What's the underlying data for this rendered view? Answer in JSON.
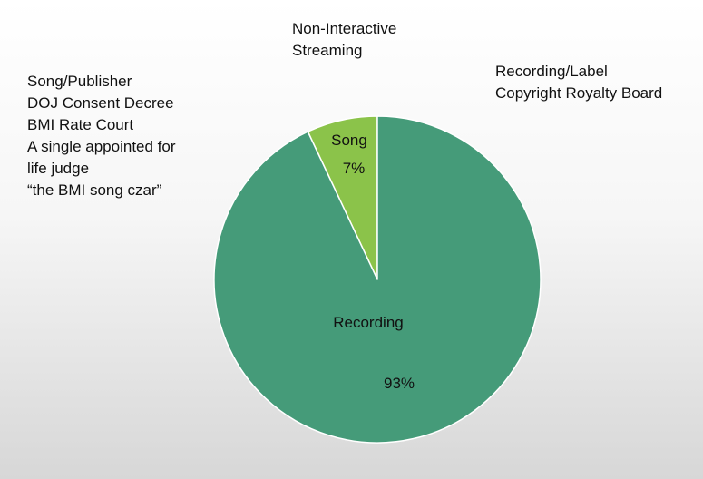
{
  "title_lines": [
    "Non-Interactive",
    "Streaming"
  ],
  "left_note": {
    "lines": [
      "Song/Publisher",
      "DOJ Consent Decree",
      "BMI Rate Court",
      "A single appointed for",
      "life judge",
      "“the BMI song czar”"
    ]
  },
  "right_note": {
    "lines": [
      "Recording/Label",
      "Copyright Royalty Board"
    ]
  },
  "chart_data": {
    "type": "pie",
    "title": "Non-Interactive Streaming",
    "slices": [
      {
        "label": "Song",
        "value": 7,
        "display": "7%",
        "color": "#8bc34a"
      },
      {
        "label": "Recording",
        "value": 93,
        "display": "93%",
        "color": "#459b79"
      }
    ],
    "start_angle_deg": 0,
    "direction": "counterclockwise",
    "border_color": "#ffffff"
  }
}
